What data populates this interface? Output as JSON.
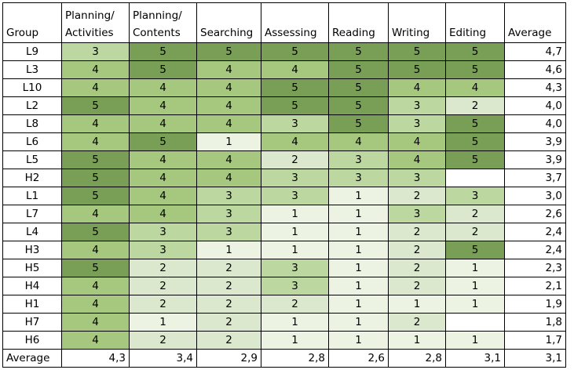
{
  "chart_data": {
    "type": "heatmap",
    "columns": [
      "Group",
      "Planning/ Activities",
      "Planning/ Contents",
      "Searching",
      "Assessing",
      "Reading",
      "Writing",
      "Editing",
      "Average"
    ],
    "rows": [
      {
        "group": "L9",
        "values": [
          3,
          5,
          5,
          5,
          5,
          5,
          5
        ],
        "average": "4,7"
      },
      {
        "group": "L3",
        "values": [
          4,
          5,
          4,
          4,
          5,
          5,
          5
        ],
        "average": "4,6"
      },
      {
        "group": "L10",
        "values": [
          4,
          4,
          4,
          5,
          5,
          4,
          4
        ],
        "average": "4,3"
      },
      {
        "group": "L2",
        "values": [
          5,
          4,
          4,
          5,
          5,
          3,
          2
        ],
        "average": "4,0"
      },
      {
        "group": "L8",
        "values": [
          4,
          4,
          4,
          3,
          5,
          3,
          5
        ],
        "average": "4,0"
      },
      {
        "group": "L6",
        "values": [
          4,
          5,
          1,
          4,
          4,
          4,
          5
        ],
        "average": "3,9"
      },
      {
        "group": "L5",
        "values": [
          5,
          4,
          4,
          2,
          3,
          4,
          5
        ],
        "average": "3,9"
      },
      {
        "group": "H2",
        "values": [
          5,
          4,
          4,
          3,
          3,
          3,
          null
        ],
        "average": "3,7"
      },
      {
        "group": "L1",
        "values": [
          5,
          4,
          3,
          3,
          1,
          2,
          3
        ],
        "average": "3,0"
      },
      {
        "group": "L7",
        "values": [
          4,
          4,
          3,
          1,
          1,
          3,
          2
        ],
        "average": "2,6"
      },
      {
        "group": "L4",
        "values": [
          5,
          3,
          3,
          1,
          1,
          2,
          2
        ],
        "average": "2,4"
      },
      {
        "group": "H3",
        "values": [
          4,
          3,
          1,
          1,
          1,
          2,
          5
        ],
        "average": "2,4"
      },
      {
        "group": "H5",
        "values": [
          5,
          2,
          2,
          3,
          1,
          2,
          1
        ],
        "average": "2,3"
      },
      {
        "group": "H4",
        "values": [
          4,
          2,
          2,
          3,
          1,
          2,
          1
        ],
        "average": "2,1"
      },
      {
        "group": "H1",
        "values": [
          4,
          2,
          2,
          2,
          1,
          1,
          1
        ],
        "average": "1,9"
      },
      {
        "group": "H7",
        "values": [
          4,
          1,
          2,
          1,
          1,
          2,
          null
        ],
        "average": "1,8"
      },
      {
        "group": "H6",
        "values": [
          4,
          2,
          2,
          1,
          1,
          1,
          1
        ],
        "average": "1,7"
      }
    ],
    "footer": {
      "label": "Average",
      "values": [
        "4,3",
        "3,4",
        "2,9",
        "2,8",
        "2,6",
        "2,8",
        "3,1"
      ],
      "average": "3,1"
    },
    "color_scale": {
      "1": "#edf3e3",
      "2": "#dbe8cd",
      "3": "#bdd7a1",
      "4": "#a5c87e",
      "5": "#789f55"
    }
  }
}
